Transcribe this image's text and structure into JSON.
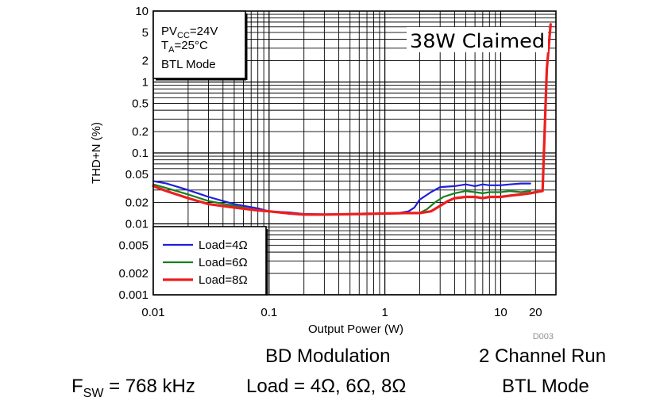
{
  "chart_data": {
    "type": "line",
    "xscale": "log",
    "yscale": "log",
    "xlim": [
      0.01,
      30
    ],
    "ylim": [
      0.001,
      10
    ],
    "xlabel": "Output Power (W)",
    "ylabel": "THD+N (%)",
    "x_ticks": [
      {
        "value": 0.01,
        "label": "0.01"
      },
      {
        "value": 0.1,
        "label": "0.1"
      },
      {
        "value": 1,
        "label": "1"
      },
      {
        "value": 10,
        "label": "10"
      },
      {
        "value": 20,
        "label": "20"
      }
    ],
    "y_ticks": [
      {
        "value": 10,
        "label": "10"
      },
      {
        "value": 5,
        "label": "5"
      },
      {
        "value": 2,
        "label": "2"
      },
      {
        "value": 1,
        "label": "1"
      },
      {
        "value": 0.5,
        "label": "0.5"
      },
      {
        "value": 0.2,
        "label": "0.2"
      },
      {
        "value": 0.1,
        "label": "0.1"
      },
      {
        "value": 0.05,
        "label": "0.05"
      },
      {
        "value": 0.02,
        "label": "0.02"
      },
      {
        "value": 0.01,
        "label": "0.01"
      },
      {
        "value": 0.005,
        "label": "0.005"
      },
      {
        "value": 0.002,
        "label": "0.002"
      },
      {
        "value": 0.001,
        "label": "0.001"
      }
    ],
    "grid": true,
    "legend_position": "bottom-left",
    "conditions": {
      "line1": "PV",
      "line1_sub": "CC",
      "line1_tail": "=24V",
      "line2": "T",
      "line2_sub": "A",
      "line2_tail": "=25°C",
      "line3": "BTL Mode"
    },
    "annotation": "38W Claimed",
    "figure_code": "D003",
    "series": [
      {
        "name": "Load=4Ω",
        "color": "#1f1fdc",
        "width": 2.2,
        "x": [
          0.01,
          0.013,
          0.02,
          0.03,
          0.05,
          0.08,
          0.1,
          0.15,
          0.2,
          0.3,
          0.5,
          0.7,
          1,
          1.3,
          1.6,
          1.8,
          2.0,
          2.5,
          3,
          4,
          5,
          6,
          7,
          8,
          10,
          12,
          15,
          18
        ],
        "y": [
          0.04,
          0.037,
          0.03,
          0.024,
          0.019,
          0.0165,
          0.015,
          0.0145,
          0.0138,
          0.0136,
          0.0138,
          0.014,
          0.0138,
          0.0142,
          0.015,
          0.017,
          0.022,
          0.028,
          0.033,
          0.034,
          0.036,
          0.034,
          0.036,
          0.035,
          0.035,
          0.036,
          0.037,
          0.037
        ]
      },
      {
        "name": "Load=6Ω",
        "color": "#15801e",
        "width": 2.2,
        "x": [
          0.01,
          0.013,
          0.02,
          0.03,
          0.05,
          0.08,
          0.1,
          0.15,
          0.2,
          0.3,
          0.5,
          0.7,
          1,
          1.5,
          2.0,
          2.3,
          2.7,
          3.2,
          4,
          5,
          6,
          7,
          8,
          10,
          12,
          15,
          18
        ],
        "y": [
          0.036,
          0.032,
          0.026,
          0.021,
          0.018,
          0.0155,
          0.015,
          0.0142,
          0.0136,
          0.0135,
          0.0137,
          0.0138,
          0.0139,
          0.014,
          0.0143,
          0.016,
          0.02,
          0.024,
          0.027,
          0.029,
          0.028,
          0.027,
          0.028,
          0.028,
          0.029,
          0.028,
          0.029
        ]
      },
      {
        "name": "Load=8Ω",
        "color": "#ee1d1d",
        "width": 3.2,
        "x": [
          0.01,
          0.013,
          0.02,
          0.03,
          0.05,
          0.08,
          0.1,
          0.15,
          0.2,
          0.3,
          0.5,
          0.7,
          1,
          1.5,
          2.0,
          2.5,
          3,
          3.5,
          4,
          5,
          6,
          7,
          8,
          10,
          12,
          15,
          18,
          20,
          23,
          25,
          27
        ],
        "y": [
          0.034,
          0.029,
          0.023,
          0.019,
          0.017,
          0.0155,
          0.015,
          0.014,
          0.0135,
          0.0135,
          0.0137,
          0.0138,
          0.014,
          0.0142,
          0.0142,
          0.015,
          0.018,
          0.021,
          0.023,
          0.024,
          0.024,
          0.023,
          0.024,
          0.024,
          0.025,
          0.026,
          0.027,
          0.028,
          0.029,
          1.5,
          6.5
        ]
      }
    ]
  },
  "captions": {
    "modulation": "BD Modulation",
    "channels": "2 Channel Run",
    "fsw_prefix": "F",
    "fsw_sub": "SW",
    "fsw_value": " = 768 kHz",
    "load": "Load = 4Ω, 6Ω, 8Ω",
    "mode": "BTL Mode"
  }
}
